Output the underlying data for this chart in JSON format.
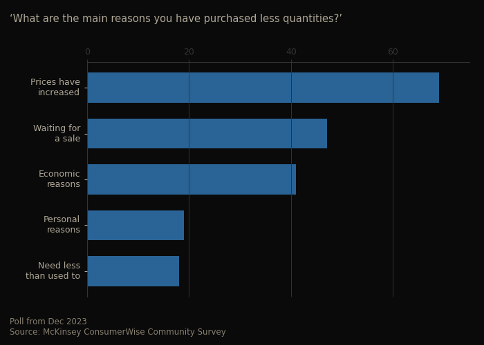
{
  "title": "‘What are the main reasons you have purchased less quantities?’",
  "categories": [
    "Prices have\nincreased",
    "Waiting for\na sale",
    "Economic\nreasons",
    "Personal\nreasons",
    "Need less\nthan used to"
  ],
  "values": [
    69,
    47,
    41,
    19,
    18
  ],
  "bar_color": "#2a6496",
  "xlim": [
    0,
    75
  ],
  "xticks": [
    0,
    20,
    40,
    60
  ],
  "footnote_line1": "Poll from Dec 2023",
  "footnote_line2": "Source: McKinsey ConsumerWise Community Survey",
  "background_color": "#0a0a0a",
  "text_color": "#b0a898",
  "title_color": "#b0a898",
  "footnote_color": "#888070",
  "grid_color": "#333333",
  "title_fontsize": 10.5,
  "label_fontsize": 9,
  "tick_fontsize": 9,
  "footnote_fontsize": 8.5
}
